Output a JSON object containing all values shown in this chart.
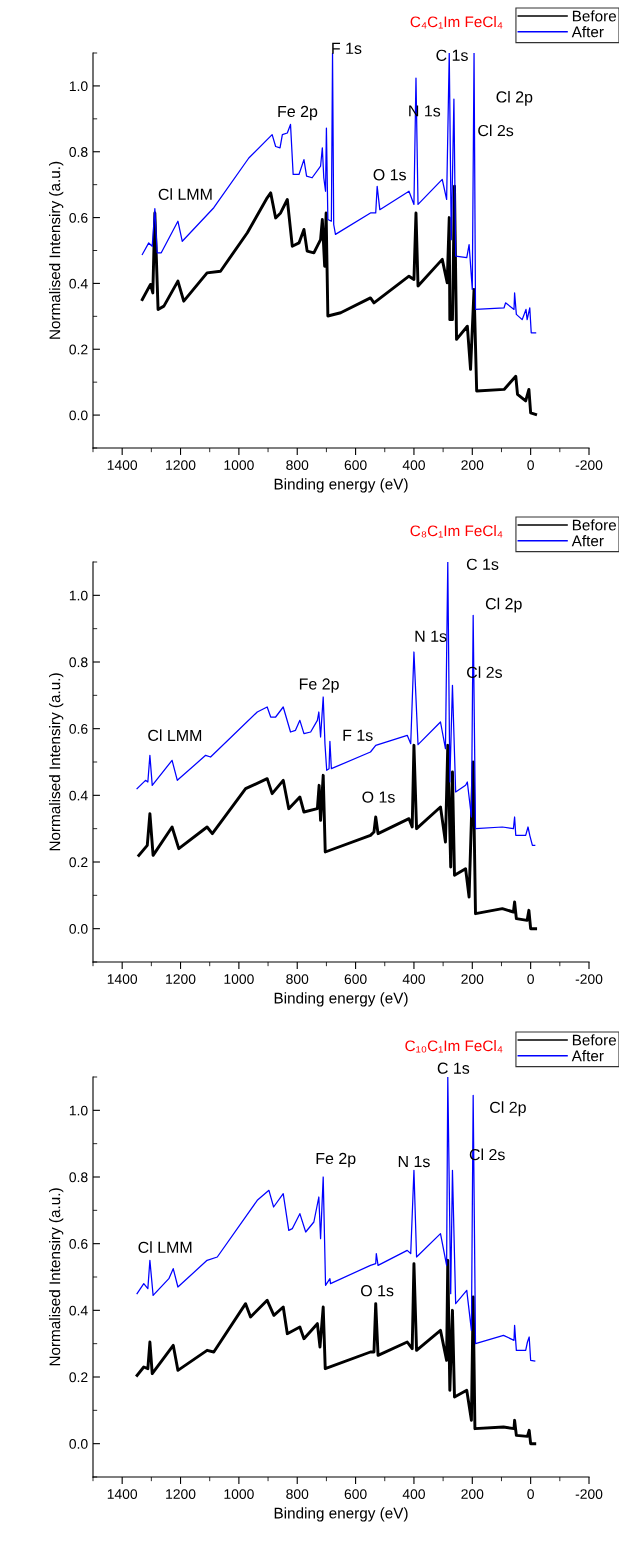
{
  "chart_data": [
    {
      "type": "line",
      "title": "C₄C₁Im FeCl₄",
      "xlabel": "Binding energy (eV)",
      "ylabel": "Normalised Intensiry (a.u.)",
      "legend": "top right",
      "xlim": [
        1500,
        -200
      ],
      "ylim": [
        -0.1,
        1.1
      ],
      "xticks": [
        {
          "value": 1500,
          "label": null
        },
        1400,
        {
          "value": 1300,
          "label": null
        },
        1200,
        {
          "value": 1100,
          "label": null
        },
        1000,
        {
          "value": 900,
          "label": null
        },
        800,
        {
          "value": 700,
          "label": null
        },
        600,
        {
          "value": 500,
          "label": null
        },
        400,
        {
          "value": 300,
          "label": null
        },
        200,
        {
          "value": 100,
          "label": null
        },
        0,
        {
          "value": -100,
          "label": null
        },
        -200
      ],
      "yticks": [
        {
          "value": -0.1,
          "label": null
        },
        {
          "value": 0,
          "label": "0.0"
        },
        {
          "value": 0.1,
          "label": null
        },
        {
          "value": 0.2,
          "label": "0.2"
        },
        {
          "value": 0.3,
          "label": null
        },
        {
          "value": 0.4,
          "label": "0.4"
        },
        {
          "value": 0.5,
          "label": null
        },
        {
          "value": 0.6,
          "label": "0.6"
        },
        {
          "value": 0.7,
          "label": null
        },
        {
          "value": 0.8,
          "label": "0.8"
        },
        {
          "value": 0.9,
          "label": null
        },
        {
          "value": 1.0,
          "label": "1.0"
        },
        {
          "value": 1.1,
          "label": null
        }
      ],
      "series": [
        {
          "name": "Before",
          "color": "#000000",
          "x": [
            1331,
            1303,
            1295,
            1288,
            1277,
            1257,
            1209,
            1189,
            1109,
            1063,
            971,
            903,
            891,
            874,
            857,
            834,
            817,
            794,
            777,
            766,
            743,
            720,
            714,
            706,
            701,
            695,
            651,
            549,
            537,
            417,
            400,
            393,
            386,
            303,
            286,
            279,
            277,
            268,
            261,
            254,
            217,
            206,
            194,
            185,
            91,
            51,
            45,
            17,
            6,
            0,
            -17
          ],
          "values": [
            0.351,
            0.397,
            0.371,
            0.614,
            0.321,
            0.331,
            0.407,
            0.346,
            0.432,
            0.437,
            0.554,
            0.66,
            0.675,
            0.599,
            0.614,
            0.655,
            0.513,
            0.523,
            0.564,
            0.498,
            0.493,
            0.533,
            0.594,
            0.452,
            0.614,
            0.301,
            0.311,
            0.356,
            0.341,
            0.422,
            0.412,
            0.614,
            0.392,
            0.473,
            0.402,
            0.6,
            0.29,
            0.29,
            0.695,
            0.23,
            0.27,
            0.139,
            0.382,
            0.073,
            0.078,
            0.118,
            0.063,
            0.043,
            0.078,
            0.007,
            0.002
          ]
        },
        {
          "name": "After",
          "color": "#0000ff",
          "x": [
            1331,
            1309,
            1297,
            1288,
            1280,
            1266,
            1209,
            1194,
            1086,
            966,
            886,
            874,
            859,
            851,
            834,
            823,
            814,
            794,
            777,
            768,
            749,
            720,
            714,
            709,
            703,
            700,
            695,
            683,
            679,
            675,
            669,
            549,
            531,
            526,
            517,
            417,
            400,
            393,
            386,
            303,
            288,
            279,
            272,
            263,
            257,
            219,
            211,
            200,
            194,
            189,
            91,
            86,
            57,
            55,
            49,
            29,
            16,
            12,
            3,
            -2,
            -17
          ],
          "values": [
            0.488,
            0.523,
            0.513,
            0.627,
            0.493,
            0.493,
            0.589,
            0.528,
            0.63,
            0.781,
            0.852,
            0.816,
            0.812,
            0.852,
            0.857,
            0.883,
            0.731,
            0.731,
            0.776,
            0.726,
            0.721,
            0.756,
            0.812,
            0.721,
            0.68,
            0.872,
            0.594,
            0.589,
            1.1,
            0.579,
            0.549,
            0.614,
            0.614,
            0.695,
            0.624,
            0.68,
            0.64,
            1.024,
            0.64,
            0.716,
            0.655,
            1.1,
            0.533,
            0.96,
            0.483,
            0.478,
            0.518,
            0.382,
            1.1,
            0.321,
            0.326,
            0.341,
            0.321,
            0.371,
            0.306,
            0.29,
            0.321,
            0.29,
            0.326,
            0.25,
            0.25
          ]
        }
      ],
      "annotations": [
        {
          "text": "Cl LMM",
          "x": 1288,
          "y": 0.627
        },
        {
          "text": "Fe 2p",
          "x": 823,
          "y": 0.883
        },
        {
          "text": "F 1s",
          "x": 679,
          "y": 1.1
        },
        {
          "text": "O 1s",
          "x": 526,
          "y": 0.695
        },
        {
          "text": "N 1s",
          "x": 393,
          "y": 1.024
        },
        {
          "text": "C 1s",
          "x": 279,
          "y": 1.1
        },
        {
          "text": "Cl 2p",
          "x": 194,
          "y": 1.1
        },
        {
          "text": "Cl 2s",
          "x": 263,
          "y": 0.96
        }
      ]
    },
    {
      "type": "line",
      "title": "C₈C₁Im FeCl₄",
      "xlabel": "Binding energy (eV)",
      "ylabel": "Normalised Intensiry (a.u.)",
      "legend": "top right",
      "xlim": [
        1500,
        -200
      ],
      "ylim": [
        -0.1,
        1.1
      ],
      "xticks": [
        {
          "value": 1500,
          "label": null
        },
        1400,
        {
          "value": 1300,
          "label": null
        },
        1200,
        {
          "value": 1100,
          "label": null
        },
        1000,
        {
          "value": 900,
          "label": null
        },
        800,
        {
          "value": 700,
          "label": null
        },
        600,
        {
          "value": 500,
          "label": null
        },
        400,
        {
          "value": 300,
          "label": null
        },
        200,
        {
          "value": 100,
          "label": null
        },
        0,
        {
          "value": -100,
          "label": null
        },
        -200
      ],
      "yticks": [
        {
          "value": -0.1,
          "label": null
        },
        {
          "value": 0,
          "label": "0.0"
        },
        {
          "value": 0.1,
          "label": null
        },
        {
          "value": 0.2,
          "label": "0.2"
        },
        {
          "value": 0.3,
          "label": null
        },
        {
          "value": 0.4,
          "label": "0.4"
        },
        {
          "value": 0.5,
          "label": null
        },
        {
          "value": 0.6,
          "label": "0.6"
        },
        {
          "value": 0.7,
          "label": null
        },
        {
          "value": 0.8,
          "label": "0.8"
        },
        {
          "value": 0.9,
          "label": null
        },
        {
          "value": 1.0,
          "label": "1.0"
        },
        {
          "value": 1.1,
          "label": null
        }
      ],
      "series": [
        {
          "name": "Before",
          "color": "#000000",
          "x": [
            1343,
            1314,
            1305,
            1294,
            1229,
            1206,
            1109,
            1091,
            977,
            903,
            886,
            848,
            829,
            791,
            777,
            731,
            725,
            720,
            711,
            704,
            549,
            537,
            531,
            523,
            417,
            406,
            400,
            391,
            309,
            292,
            284,
            274,
            268,
            261,
            223,
            211,
            197,
            189,
            97,
            59,
            55,
            49,
            12,
            6,
            0,
            -17
          ],
          "values": [
            0.22,
            0.25,
            0.345,
            0.22,
            0.305,
            0.24,
            0.305,
            0.285,
            0.42,
            0.45,
            0.405,
            0.445,
            0.36,
            0.395,
            0.35,
            0.36,
            0.43,
            0.325,
            0.46,
            0.23,
            0.28,
            0.29,
            0.335,
            0.285,
            0.33,
            0.305,
            0.55,
            0.3,
            0.365,
            0.26,
            0.55,
            0.185,
            0.47,
            0.16,
            0.18,
            0.095,
            0.5,
            0.045,
            0.06,
            0.05,
            0.08,
            0.03,
            0.025,
            0.055,
            0.0,
            0.0
          ]
        },
        {
          "name": "After",
          "color": "#0000ff",
          "x": [
            1349,
            1320,
            1312,
            1305,
            1297,
            1229,
            1211,
            1114,
            1097,
            937,
            903,
            891,
            874,
            848,
            823,
            806,
            791,
            777,
            754,
            731,
            726,
            720,
            711,
            705,
            699,
            691,
            688,
            683,
            549,
            531,
            423,
            411,
            400,
            386,
            309,
            292,
            284,
            277,
            268,
            257,
            223,
            217,
            203,
            197,
            189,
            97,
            59,
            55,
            51,
            17,
            9,
            3,
            -6,
            -14
          ],
          "values": [
            0.42,
            0.445,
            0.44,
            0.52,
            0.43,
            0.505,
            0.445,
            0.52,
            0.515,
            0.65,
            0.665,
            0.635,
            0.635,
            0.665,
            0.59,
            0.595,
            0.625,
            0.585,
            0.59,
            0.625,
            0.65,
            0.575,
            0.695,
            0.555,
            0.475,
            0.48,
            0.562,
            0.48,
            0.53,
            0.55,
            0.58,
            0.555,
            0.83,
            0.552,
            0.62,
            0.54,
            1.1,
            0.44,
            0.73,
            0.41,
            0.43,
            0.44,
            0.335,
            0.94,
            0.3,
            0.305,
            0.3,
            0.335,
            0.28,
            0.28,
            0.305,
            0.28,
            0.25,
            0.25
          ]
        }
      ],
      "annotations": [
        {
          "text": "Cl LMM",
          "x": 1305,
          "y": 0.52
        },
        {
          "text": "Fe 2p",
          "x": 711,
          "y": 0.695
        },
        {
          "text": "F 1s",
          "x": 688,
          "y": 0.562
        },
        {
          "text": "O 1s",
          "x": 531,
          "y": 0.335
        },
        {
          "text": "N 1s",
          "x": 400,
          "y": 0.83
        },
        {
          "text": "C 1s",
          "x": 284,
          "y": 1.1
        },
        {
          "text": "Cl 2p",
          "x": 197,
          "y": 0.94
        },
        {
          "text": "Cl 2s",
          "x": 268,
          "y": 0.73
        }
      ]
    },
    {
      "type": "line",
      "title": "C₁₀C₁Im FeCl₄",
      "xlabel": "Binding energy (eV)",
      "ylabel": "Normalised Intensiry (a.u.)",
      "legend": "top right",
      "xlim": [
        1500,
        -200
      ],
      "ylim": [
        -0.1,
        1.1
      ],
      "xticks": [
        {
          "value": 1500,
          "label": null
        },
        1400,
        {
          "value": 1300,
          "label": null
        },
        1200,
        {
          "value": 1100,
          "label": null
        },
        1000,
        {
          "value": 900,
          "label": null
        },
        800,
        {
          "value": 700,
          "label": null
        },
        600,
        {
          "value": 500,
          "label": null
        },
        400,
        {
          "value": 300,
          "label": null
        },
        200,
        {
          "value": 100,
          "label": null
        },
        0,
        {
          "value": -100,
          "label": null
        },
        -200
      ],
      "yticks": [
        {
          "value": -0.1,
          "label": null
        },
        {
          "value": 0,
          "label": "0.0"
        },
        {
          "value": 0.1,
          "label": null
        },
        {
          "value": 0.2,
          "label": "0.2"
        },
        {
          "value": 0.3,
          "label": null
        },
        {
          "value": 0.4,
          "label": "0.4"
        },
        {
          "value": 0.5,
          "label": null
        },
        {
          "value": 0.6,
          "label": "0.6"
        },
        {
          "value": 0.7,
          "label": null
        },
        {
          "value": 0.8,
          "label": "0.8"
        },
        {
          "value": 0.9,
          "label": null
        },
        {
          "value": 1.0,
          "label": "1.0"
        },
        {
          "value": 1.1,
          "label": null
        }
      ],
      "series": [
        {
          "name": "Before",
          "color": "#000000",
          "x": [
            1349,
            1326,
            1312,
            1305,
            1297,
            1225,
            1209,
            1109,
            1086,
            977,
            960,
            903,
            880,
            848,
            834,
            791,
            777,
            731,
            722,
            711,
            704,
            549,
            537,
            531,
            523,
            423,
            406,
            400,
            391,
            309,
            288,
            284,
            277,
            268,
            261,
            219,
            203,
            197,
            191,
            93,
            57,
            55,
            49,
            11,
            5,
            0,
            -14
          ],
          "values": [
            0.205,
            0.23,
            0.225,
            0.305,
            0.21,
            0.295,
            0.22,
            0.28,
            0.275,
            0.42,
            0.38,
            0.43,
            0.385,
            0.41,
            0.33,
            0.35,
            0.315,
            0.36,
            0.29,
            0.41,
            0.225,
            0.275,
            0.275,
            0.42,
            0.265,
            0.305,
            0.285,
            0.54,
            0.28,
            0.34,
            0.25,
            0.55,
            0.16,
            0.4,
            0.14,
            0.16,
            0.07,
            0.44,
            0.045,
            0.05,
            0.045,
            0.07,
            0.025,
            0.022,
            0.04,
            0.0,
            0.0
          ]
        },
        {
          "name": "After",
          "color": "#0000ff",
          "x": [
            1349,
            1326,
            1312,
            1305,
            1294,
            1240,
            1225,
            1209,
            1109,
            1074,
            937,
            897,
            881,
            848,
            829,
            817,
            791,
            771,
            743,
            726,
            720,
            711,
            703,
            688,
            686,
            549,
            531,
            529,
            523,
            423,
            411,
            400,
            391,
            309,
            288,
            284,
            274,
            268,
            257,
            219,
            203,
            197,
            189,
            93,
            57,
            55,
            49,
            17,
            11,
            5,
            0,
            -14
          ],
          "values": [
            0.45,
            0.48,
            0.465,
            0.55,
            0.445,
            0.495,
            0.525,
            0.47,
            0.55,
            0.56,
            0.73,
            0.76,
            0.71,
            0.75,
            0.64,
            0.645,
            0.69,
            0.635,
            0.665,
            0.74,
            0.615,
            0.8,
            0.475,
            0.495,
            0.48,
            0.535,
            0.54,
            0.57,
            0.535,
            0.58,
            0.57,
            0.82,
            0.56,
            0.63,
            0.535,
            1.1,
            0.45,
            0.82,
            0.42,
            0.46,
            0.34,
            1.045,
            0.3,
            0.325,
            0.31,
            0.355,
            0.28,
            0.28,
            0.305,
            0.32,
            0.25,
            0.248
          ]
        }
      ],
      "annotations": [
        {
          "text": "Cl LMM",
          "x": 1305,
          "y": 0.55
        },
        {
          "text": "Fe 2p",
          "x": 711,
          "y": 0.8
        },
        {
          "text": "O 1s",
          "x": 531,
          "y": 0.42
        },
        {
          "text": "N 1s",
          "x": 400,
          "y": 0.82
        },
        {
          "text": "C 1s",
          "x": 284,
          "y": 1.1
        },
        {
          "text": "Cl 2p",
          "x": 197,
          "y": 1.045
        },
        {
          "text": "Cl 2s",
          "x": 268,
          "y": 0.82
        }
      ]
    }
  ]
}
